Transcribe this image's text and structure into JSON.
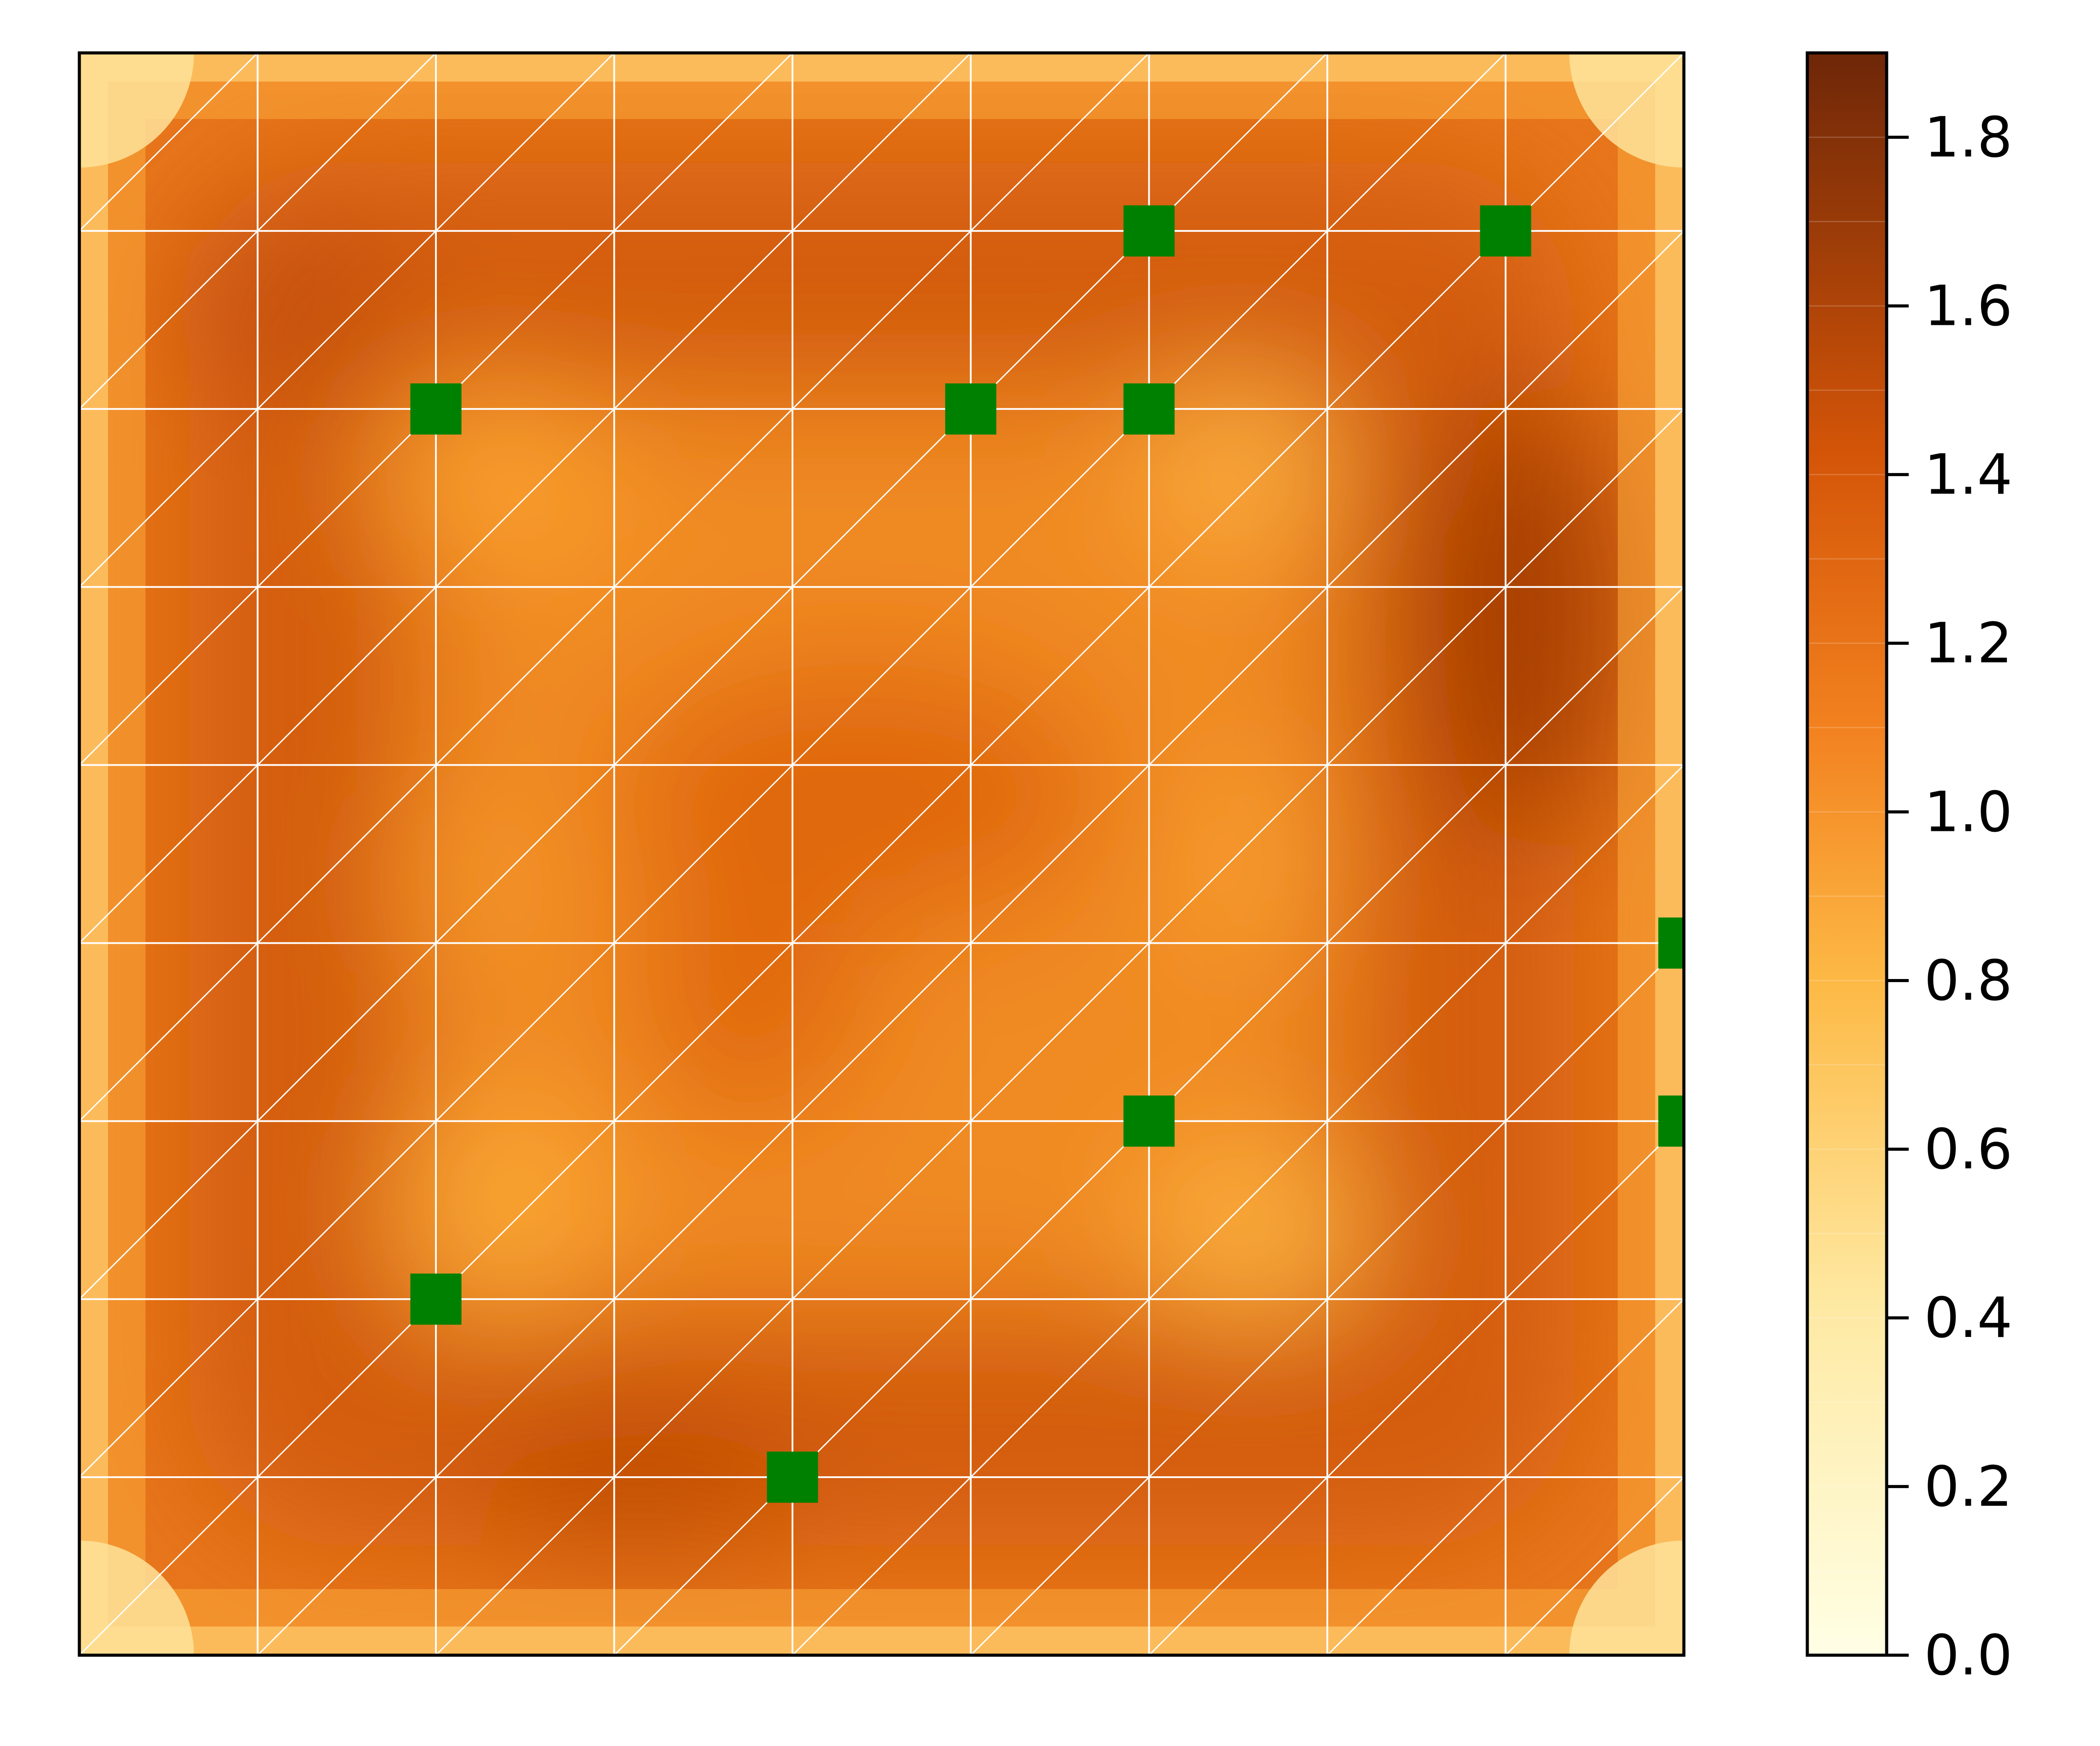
{
  "chart_data": {
    "type": "heatmap",
    "title": "",
    "xlabel": "",
    "ylabel": "",
    "xlim": [
      0,
      9
    ],
    "ylim": [
      0,
      9
    ],
    "x_ticks_shown": false,
    "y_ticks_shown": false,
    "grid": {
      "shown": true,
      "color": "#ffffff",
      "kind": "triangular mesh",
      "divisions": 9
    },
    "colormap": "YlOrBr",
    "colorbar": {
      "min": 0.0,
      "max": 1.9,
      "levels": 19,
      "ticks": [
        0.0,
        0.2,
        0.4,
        0.6,
        0.8,
        1.0,
        1.2,
        1.4,
        1.6,
        1.8
      ],
      "tick_labels": [
        "0.0",
        "0.2",
        "0.4",
        "0.6",
        "0.8",
        "1.0",
        "1.2",
        "1.4",
        "1.6",
        "1.8"
      ],
      "placement": "right"
    },
    "markers": {
      "color": "#008000",
      "shape": "square",
      "points": [
        {
          "x": 6,
          "y": 8
        },
        {
          "x": 8,
          "y": 8
        },
        {
          "x": 2,
          "y": 7
        },
        {
          "x": 5,
          "y": 7
        },
        {
          "x": 6,
          "y": 7
        },
        {
          "x": 9,
          "y": 4
        },
        {
          "x": 6,
          "y": 3
        },
        {
          "x": 9,
          "y": 3
        },
        {
          "x": 2,
          "y": 2
        },
        {
          "x": 4,
          "y": 1
        }
      ]
    },
    "field_samples": {
      "description_values": "approximate field value read from contour colours",
      "points": [
        {
          "x": 1.1,
          "y": 7.9,
          "value": 1.4
        },
        {
          "x": 8.2,
          "y": 5.9,
          "value": 1.55
        },
        {
          "x": 3.0,
          "y": 0.9,
          "value": 1.45
        },
        {
          "x": 2.3,
          "y": 6.7,
          "value": 0.9
        },
        {
          "x": 6.5,
          "y": 6.7,
          "value": 0.85
        },
        {
          "x": 2.4,
          "y": 2.5,
          "value": 0.85
        },
        {
          "x": 6.6,
          "y": 2.3,
          "value": 0.85
        },
        {
          "x": 4.5,
          "y": 4.0,
          "value": 1.15
        },
        {
          "x": 5.2,
          "y": 5.5,
          "value": 1.15
        },
        {
          "x": 6.6,
          "y": 4.5,
          "value": 0.9
        },
        {
          "x": 0.0,
          "y": 0.0,
          "value": 0.4
        },
        {
          "x": 9.0,
          "y": 9.0,
          "value": 0.4
        }
      ]
    }
  }
}
